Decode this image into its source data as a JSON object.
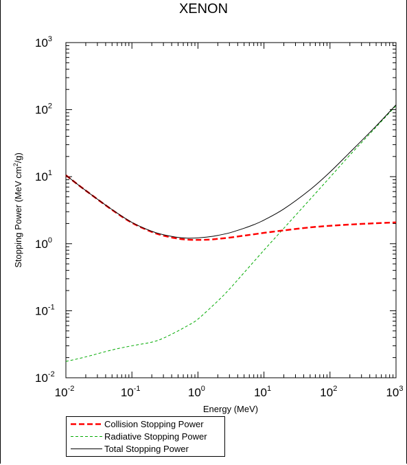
{
  "chart_data": {
    "type": "line",
    "title": "XENON",
    "xlabel": "Energy (MeV)",
    "ylabel": "Stopping Power (MeV cm²/g)",
    "ylabel_parts": {
      "pre": "Stopping Power (MeV cm",
      "sup": "2",
      "post": "/g)"
    },
    "xscale": "log",
    "yscale": "log",
    "xlim": [
      0.01,
      1000
    ],
    "ylim": [
      0.01,
      1000
    ],
    "x_ticks": [
      {
        "value": 0.01,
        "base": "10",
        "exp": "-2"
      },
      {
        "value": 0.1,
        "base": "10",
        "exp": "-1"
      },
      {
        "value": 1,
        "base": "10",
        "exp": "0"
      },
      {
        "value": 10,
        "base": "10",
        "exp": "1"
      },
      {
        "value": 100,
        "base": "10",
        "exp": "2"
      },
      {
        "value": 1000,
        "base": "10",
        "exp": "3"
      }
    ],
    "y_ticks": [
      {
        "value": 0.01,
        "base": "10",
        "exp": "-2"
      },
      {
        "value": 0.1,
        "base": "10",
        "exp": "-1"
      },
      {
        "value": 1,
        "base": "10",
        "exp": "0"
      },
      {
        "value": 10,
        "base": "10",
        "exp": "1"
      },
      {
        "value": 100,
        "base": "10",
        "exp": "2"
      },
      {
        "value": 1000,
        "base": "10",
        "exp": "3"
      }
    ],
    "grid": false,
    "legend_position": "below-left",
    "series": [
      {
        "name": "Collision Stopping Power",
        "color": "#ff0000",
        "style": "dashed-thick",
        "x": [
          0.01,
          0.02,
          0.05,
          0.1,
          0.2,
          0.3,
          0.5,
          0.7,
          1,
          1.5,
          2,
          3,
          5,
          7,
          10,
          20,
          50,
          100,
          200,
          500,
          1000
        ],
        "y": [
          10.5,
          6.2,
          3.2,
          2.05,
          1.5,
          1.32,
          1.19,
          1.15,
          1.14,
          1.15,
          1.18,
          1.23,
          1.32,
          1.38,
          1.45,
          1.58,
          1.75,
          1.85,
          1.93,
          2.02,
          2.08
        ]
      },
      {
        "name": "Radiative Stopping Power",
        "color": "#00aa00",
        "style": "dashed-thin",
        "x": [
          0.01,
          0.02,
          0.05,
          0.1,
          0.2,
          0.3,
          0.5,
          0.7,
          1,
          2,
          3,
          5,
          10,
          20,
          50,
          100,
          200,
          500,
          1000
        ],
        "y": [
          0.0175,
          0.0205,
          0.026,
          0.03,
          0.034,
          0.039,
          0.05,
          0.06,
          0.075,
          0.14,
          0.21,
          0.37,
          0.8,
          1.7,
          4.6,
          9.8,
          21,
          55,
          115
        ]
      },
      {
        "name": "Total Stopping Power",
        "color": "#000000",
        "style": "solid",
        "x": [
          0.01,
          0.02,
          0.05,
          0.1,
          0.2,
          0.3,
          0.5,
          0.7,
          1,
          1.5,
          2,
          3,
          5,
          7,
          10,
          20,
          50,
          100,
          200,
          500,
          1000
        ],
        "y": [
          10.5,
          6.2,
          3.23,
          2.08,
          1.53,
          1.36,
          1.24,
          1.21,
          1.22,
          1.27,
          1.33,
          1.45,
          1.7,
          1.92,
          2.25,
          3.3,
          6.4,
          11.7,
          23,
          57,
          118
        ]
      }
    ]
  }
}
